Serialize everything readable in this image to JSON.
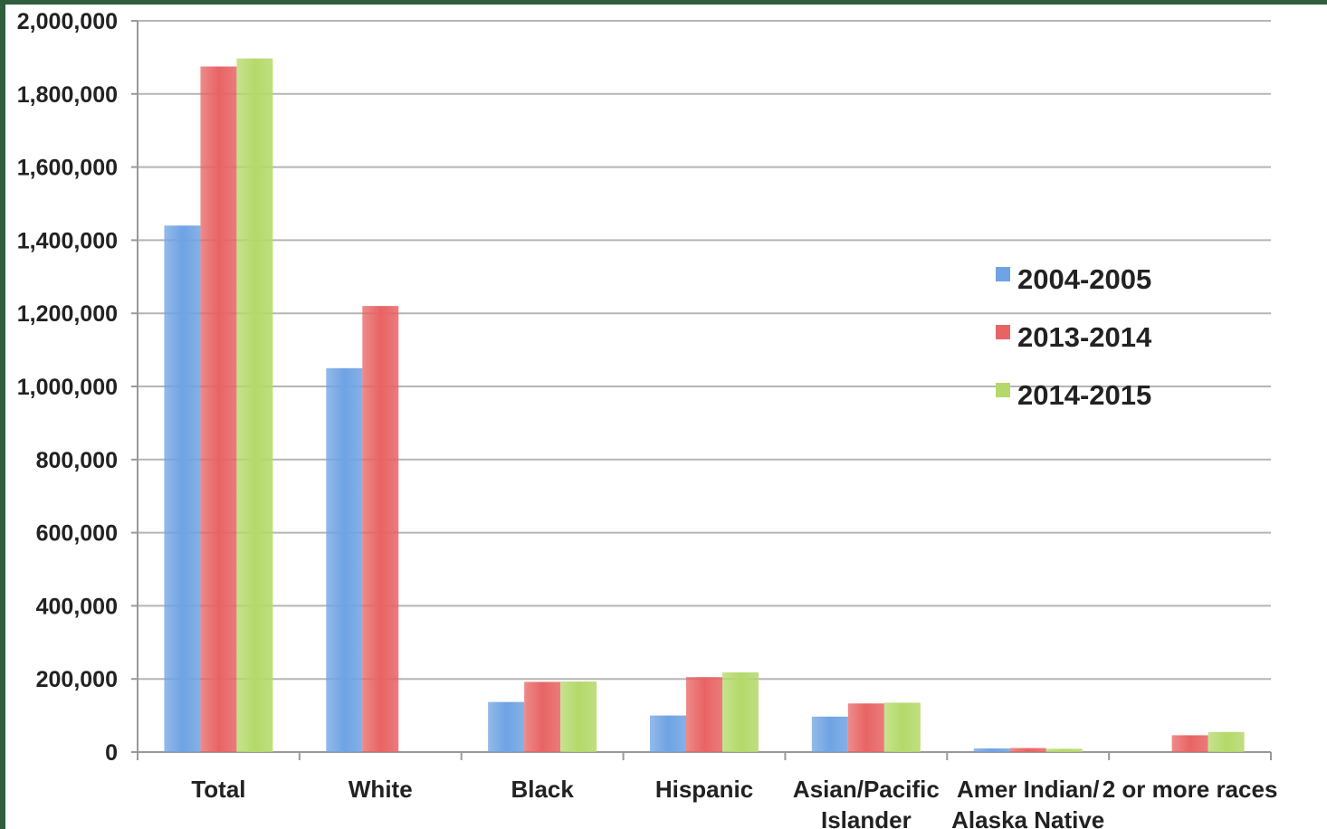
{
  "chart_data": {
    "type": "bar",
    "categories": [
      [
        "Total"
      ],
      [
        "White"
      ],
      [
        "Black"
      ],
      [
        "Hispanic"
      ],
      [
        "Asian/Pacific",
        "Islander"
      ],
      [
        "Amer Indian/",
        "Alaska Native"
      ],
      [
        "2 or more races"
      ]
    ],
    "series": [
      {
        "name": "2004-2005",
        "color": "#6fa3e3",
        "values": [
          1440000,
          1050000,
          137000,
          100000,
          97000,
          10000,
          null
        ]
      },
      {
        "name": "2013-2014",
        "color": "#e86464",
        "values": [
          1875000,
          1220000,
          192000,
          205000,
          133000,
          11000,
          46000
        ]
      },
      {
        "name": "2014-2015",
        "color": "#b4d96a",
        "values": [
          1897000,
          null,
          193000,
          218000,
          135000,
          9000,
          55000
        ]
      }
    ],
    "ylim": [
      0,
      2000000
    ],
    "yticks": [
      "0",
      "200,000",
      "400,000",
      "600,000",
      "800,000",
      "1,000,000",
      "1,200,000",
      "1,400,000",
      "1,600,000",
      "1,800,000",
      "2,000,000"
    ],
    "grid": true,
    "legend_position": "right"
  }
}
